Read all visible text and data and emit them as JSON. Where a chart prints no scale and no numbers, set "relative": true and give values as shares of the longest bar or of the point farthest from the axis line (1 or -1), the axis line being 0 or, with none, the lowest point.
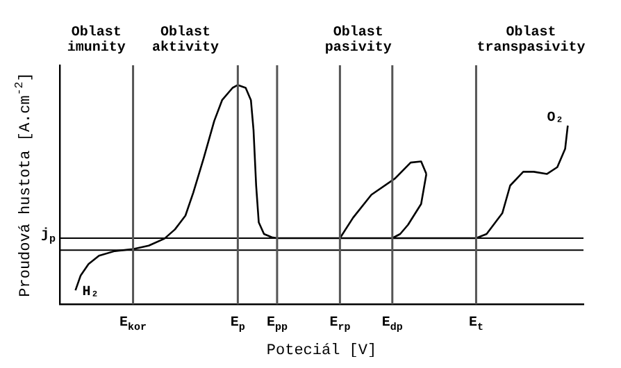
{
  "chart_data": {
    "type": "line",
    "relative": true,
    "xlabel": "Poteciál [V]",
    "ylabel": "Proudová hustota [A.cm$^{-2}$]",
    "marker": "none",
    "grid": "x",
    "categories": [
      null,
      null,
      null,
      null,
      null,
      null,
      null,
      null,
      null,
      null,
      null,
      null,
      null,
      null,
      null,
      null,
      null,
      null,
      null,
      null,
      null,
      null,
      null,
      null,
      null,
      null,
      null,
      null,
      "E$_{kor}$",
      null,
      null,
      null,
      null,
      null,
      null,
      null,
      null,
      null,
      null,
      null,
      null,
      null,
      null,
      null,
      null,
      null,
      null,
      null,
      null,
      null,
      null,
      null,
      null,
      null,
      null,
      null,
      null,
      null,
      null,
      null,
      null,
      null,
      null,
      null,
      null,
      null,
      null,
      null,
      "E$_{p}$",
      null,
      null,
      null,
      null,
      null,
      null,
      null,
      null,
      null,
      null,
      null,
      null,
      null,
      null,
      "E$_{pp}$",
      null,
      null,
      null,
      null,
      null,
      null,
      null,
      null,
      null,
      null,
      null,
      null,
      null,
      null,
      null,
      null,
      null,
      null,
      null,
      null,
      null,
      null,
      null,
      "E$_{rp}$",
      null,
      null,
      null,
      null,
      null,
      null,
      null,
      null,
      null,
      null,
      null,
      null,
      null,
      null,
      null,
      null,
      null,
      null,
      null,
      "E$_{dp}$",
      null,
      null,
      null,
      null,
      null,
      null,
      null,
      null,
      null,
      null,
      null,
      null,
      null,
      null,
      null,
      null,
      null,
      null,
      null,
      null,
      null,
      null,
      null,
      null,
      null,
      null,
      null,
      null,
      null,
      null,
      null,
      "E$_{t}$",
      null,
      null,
      null,
      null,
      null,
      null,
      null,
      null,
      null,
      null,
      null,
      null,
      null,
      null,
      null,
      null,
      null,
      null,
      null,
      null,
      null,
      null,
      null,
      null,
      null,
      null,
      null,
      null,
      null,
      null,
      null,
      null,
      null,
      null,
      null,
      null,
      null,
      null,
      null,
      null,
      null
    ],
    "series": [
      {
        "color": "#000000",
        "values": [
          null,
          null,
          null,
          null,
          null,
          null,
          0.063,
          null,
          0.131,
          null,
          null,
          0.183,
          null,
          null,
          null,
          0.221,
          null,
          null,
          null,
          null,
          null,
          0.242,
          null,
          null,
          null,
          null,
          null,
          null,
          0.251,
          null,
          null,
          null,
          null,
          null,
          0.267,
          null,
          null,
          null,
          null,
          null,
          0.299,
          null,
          null,
          null,
          0.341,
          null,
          null,
          null,
          0.404,
          null,
          null,
          0.509,
          null,
          null,
          null,
          0.667,
          null,
          null,
          null,
          0.836,
          null,
          null,
          0.931,
          null,
          null,
          null,
          0.987,
          null,
          1,
          null,
          null,
          0.987,
          null,
          0.931,
          0.794,
          0.541,
          0.373,
          null,
          0.32,
          null,
          null,
          0.305,
          null,
          0.301,
          null,
          null,
          null,
          null,
          null,
          null,
          null,
          null,
          null,
          null,
          null,
          null,
          null,
          null,
          null,
          null,
          null,
          null,
          null,
          null,
          null,
          null,
          null,
          0.301,
          null,
          null,
          null,
          null,
          null,
          null,
          null,
          null,
          null,
          null,
          null,
          null,
          null,
          null,
          null,
          null,
          null,
          null,
          null,
          0.301,
          null,
          null,
          null,
          null,
          null,
          null,
          null,
          null,
          null,
          null,
          null,
          null,
          null,
          null,
          null,
          null,
          null,
          null,
          null,
          null,
          null,
          null,
          null,
          null,
          null,
          null,
          null,
          null,
          null,
          null,
          null,
          0.301,
          null,
          null,
          null,
          0.32,
          null,
          null,
          null,
          null,
          null,
          0.415,
          null,
          null,
          0.541,
          null,
          null,
          null,
          null,
          0.604,
          null,
          null,
          null,
          0.604,
          null,
          null,
          null,
          null,
          0.594,
          null,
          null,
          null,
          0.625,
          null,
          null,
          0.709,
          0.815,
          null,
          null,
          null,
          null,
          null,
          null
        ]
      },
      {
        "color": "#000000",
        "values": [
          null,
          null,
          null,
          null,
          null,
          null,
          null,
          null,
          null,
          null,
          null,
          null,
          null,
          null,
          null,
          null,
          null,
          null,
          null,
          null,
          null,
          null,
          null,
          null,
          null,
          null,
          null,
          null,
          null,
          null,
          null,
          null,
          null,
          null,
          null,
          null,
          null,
          null,
          null,
          null,
          null,
          null,
          null,
          null,
          null,
          null,
          null,
          null,
          null,
          null,
          null,
          null,
          null,
          null,
          null,
          null,
          null,
          null,
          null,
          null,
          null,
          null,
          null,
          null,
          null,
          null,
          null,
          null,
          null,
          null,
          null,
          null,
          null,
          null,
          null,
          null,
          null,
          null,
          null,
          null,
          null,
          null,
          null,
          null,
          null,
          null,
          null,
          null,
          null,
          null,
          null,
          null,
          null,
          null,
          null,
          null,
          null,
          null,
          null,
          null,
          null,
          null,
          null,
          null,
          null,
          null,
          null,
          0.301,
          null,
          null,
          null,
          null,
          0.394,
          null,
          null,
          null,
          null,
          null,
          null,
          0.499,
          null,
          null,
          null,
          null,
          null,
          null,
          null,
          null,
          0.573,
          null,
          null,
          null,
          null,
          null,
          0.646,
          null,
          null,
          null,
          0.651,
          null,
          0.594,
          null,
          null,
          null,
          null,
          null,
          null,
          null,
          null,
          null,
          null,
          null,
          null,
          null,
          null,
          null,
          null,
          null,
          null,
          null,
          null,
          null,
          null,
          null,
          null,
          null,
          null,
          null,
          null,
          null,
          null,
          null,
          null,
          null,
          null,
          null,
          null,
          null,
          null,
          null,
          null,
          null,
          null,
          null,
          null,
          null,
          null,
          null,
          null,
          null,
          null,
          null,
          null,
          null,
          null,
          null,
          null,
          null,
          null,
          null,
          null
        ]
      },
      {
        "color": "#000000",
        "values": [
          null,
          null,
          null,
          null,
          null,
          null,
          null,
          null,
          null,
          null,
          null,
          null,
          null,
          null,
          null,
          null,
          null,
          null,
          null,
          null,
          null,
          null,
          null,
          null,
          null,
          null,
          null,
          null,
          null,
          null,
          null,
          null,
          null,
          null,
          null,
          null,
          null,
          null,
          null,
          null,
          null,
          null,
          null,
          null,
          null,
          null,
          null,
          null,
          null,
          null,
          null,
          null,
          null,
          null,
          null,
          null,
          null,
          null,
          null,
          null,
          null,
          null,
          null,
          null,
          null,
          null,
          null,
          null,
          null,
          null,
          null,
          null,
          null,
          null,
          null,
          null,
          null,
          null,
          null,
          null,
          null,
          null,
          null,
          null,
          null,
          null,
          null,
          null,
          null,
          null,
          null,
          null,
          null,
          null,
          null,
          null,
          null,
          null,
          null,
          null,
          null,
          null,
          null,
          null,
          null,
          null,
          null,
          null,
          null,
          null,
          null,
          null,
          null,
          null,
          null,
          null,
          null,
          null,
          null,
          null,
          null,
          null,
          null,
          null,
          null,
          null,
          null,
          0.301,
          null,
          null,
          0.32,
          null,
          null,
          0.362,
          null,
          null,
          null,
          null,
          0.457,
          null,
          0.594,
          null,
          null,
          null,
          null,
          null,
          null,
          null,
          null,
          null,
          null,
          null,
          null,
          null,
          null,
          null,
          null,
          null,
          null,
          null,
          null,
          null,
          null,
          null,
          null,
          null,
          null,
          null,
          null,
          null,
          null,
          null,
          null,
          null,
          null,
          null,
          null,
          null,
          null,
          null,
          null,
          null,
          null,
          null,
          null,
          null,
          null,
          null,
          null,
          null,
          null,
          null,
          null,
          null,
          null,
          null,
          null,
          null,
          null,
          null,
          null
        ]
      }
    ],
    "ref_lines": [
      {
        "axis": "y",
        "value": 0.301,
        "label": "j$_{p}$",
        "color": "#000000"
      },
      {
        "axis": "y",
        "value": 0.246,
        "color": "#000000"
      }
    ],
    "annotations": [
      "Oblast imunity",
      "Oblast aktivity",
      "Oblast pasivity",
      "Oblast transpasivity",
      "H₂",
      "O₂"
    ]
  }
}
